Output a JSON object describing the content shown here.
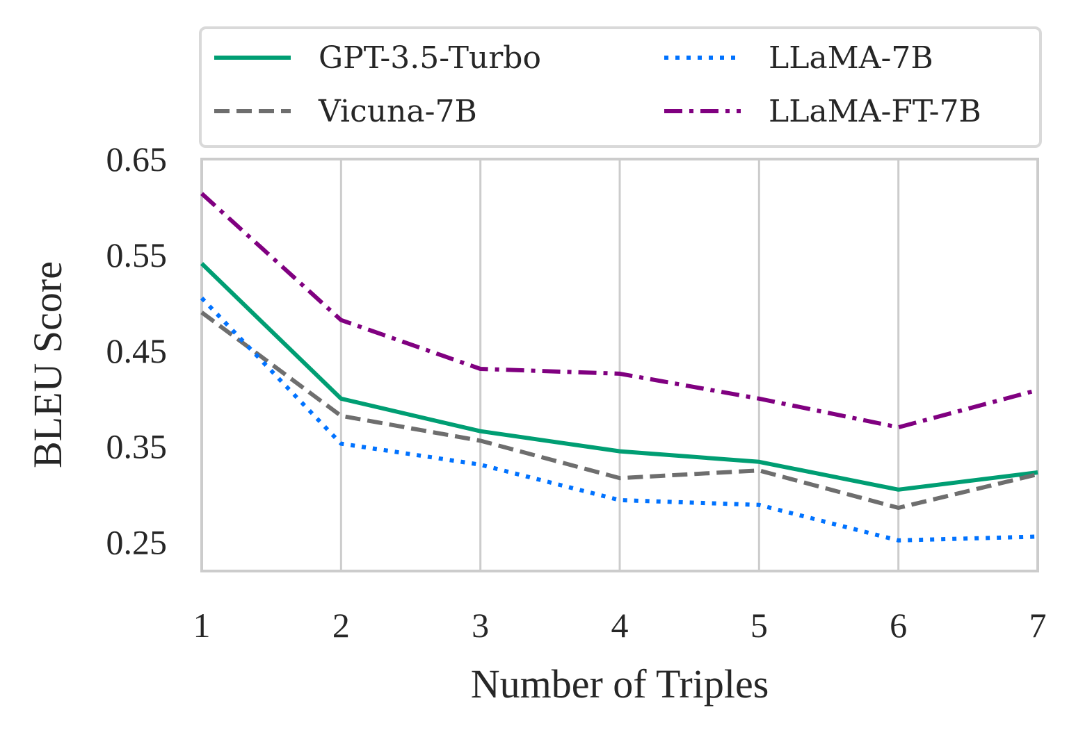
{
  "chart_data": {
    "type": "line",
    "xlabel": "Number of Triples",
    "ylabel": "BLEU Score",
    "x": [
      1,
      2,
      3,
      4,
      5,
      6,
      7
    ],
    "xticks": [
      "1",
      "2",
      "3",
      "4",
      "5",
      "6",
      "7"
    ],
    "xlim": [
      1,
      7
    ],
    "ylim": [
      0.22,
      0.65
    ],
    "yticks": [
      0.25,
      0.35,
      0.45,
      0.55,
      0.65
    ],
    "ytick_labels": [
      "0.25",
      "0.35",
      "0.45",
      "0.55",
      "0.65"
    ],
    "grid": "vertical",
    "legend_position": "top",
    "series": [
      {
        "name": "GPT-3.5-Turbo",
        "color": "#009e73",
        "style": "solid",
        "values": [
          0.541,
          0.4,
          0.366,
          0.345,
          0.334,
          0.305,
          0.323
        ]
      },
      {
        "name": "Vicuna-7B",
        "color": "#6e6e6e",
        "style": "dashed",
        "values": [
          0.49,
          0.382,
          0.356,
          0.317,
          0.325,
          0.286,
          0.321
        ]
      },
      {
        "name": "LLaMA-7B",
        "color": "#0072ff",
        "style": "dotted",
        "values": [
          0.505,
          0.353,
          0.331,
          0.294,
          0.289,
          0.252,
          0.256
        ]
      },
      {
        "name": "LLaMA-FT-7B",
        "color": "#800080",
        "style": "dashdot",
        "values": [
          0.614,
          0.482,
          0.431,
          0.426,
          0.4,
          0.37,
          0.409
        ]
      }
    ]
  }
}
